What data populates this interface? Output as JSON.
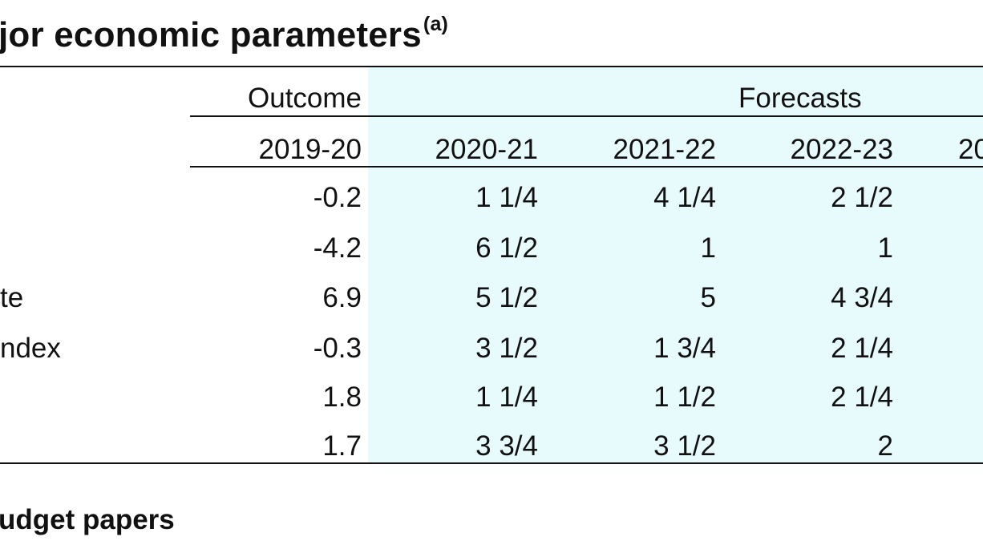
{
  "title": {
    "text": "jor economic parameters",
    "superscript": "(a)"
  },
  "table": {
    "group_headers": {
      "outcome": "Outcome",
      "forecasts": "Forecasts"
    },
    "years": [
      "2019-20",
      "2020-21",
      "2021-22",
      "2022-23",
      "20"
    ],
    "rows": [
      {
        "label": "",
        "values": [
          "-0.2",
          "1 1/4",
          "4 1/4",
          "2 1/2"
        ]
      },
      {
        "label": "",
        "values": [
          "-4.2",
          "6 1/2",
          "1",
          "1"
        ]
      },
      {
        "label": "te",
        "values": [
          "6.9",
          "5 1/2",
          "5",
          "4 3/4"
        ]
      },
      {
        "label": "ndex",
        "values": [
          "-0.3",
          "3 1/2",
          "1 3/4",
          "2 1/4"
        ]
      },
      {
        "label": "",
        "values": [
          "1.8",
          "1 1/4",
          "1 1/2",
          "2 1/4"
        ]
      },
      {
        "label": "",
        "values": [
          "1.7",
          "3 3/4",
          "3 1/2",
          "2"
        ]
      }
    ]
  },
  "footer": {
    "text": "udget papers"
  },
  "colors": {
    "forecast_shading": "#e7fbfc",
    "rules": "#111111",
    "text": "#111111"
  }
}
